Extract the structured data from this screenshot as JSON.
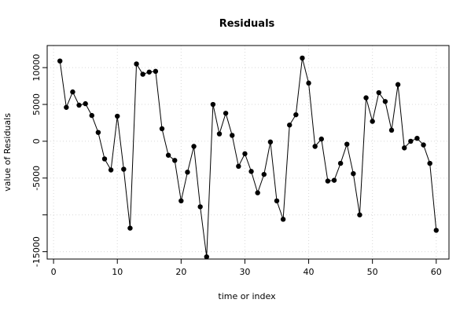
{
  "chart_data": {
    "type": "line",
    "title": "Residuals",
    "xlabel": "time or index",
    "ylabel": "value of Residuals",
    "xlim": [
      -1,
      62
    ],
    "ylim": [
      -16000,
      13000
    ],
    "x_ticks": [
      0,
      10,
      20,
      30,
      40,
      50,
      60
    ],
    "x_tick_labels": [
      "0",
      "10",
      "20",
      "30",
      "40",
      "50",
      "60"
    ],
    "y_ticks": [
      10000,
      5000,
      0,
      -5000,
      -15000
    ],
    "y_tick_labels": [
      "10000",
      "5000",
      "0",
      "-5000",
      "-15000"
    ],
    "y_minor_ticks": [
      -10000
    ],
    "grid": true,
    "line_color": "#000000",
    "marker": "filled-circle",
    "series": [
      {
        "x": [
          1,
          2,
          3,
          4,
          5,
          6,
          7,
          8,
          9,
          10,
          11,
          12,
          13,
          14,
          15,
          16,
          17,
          18,
          19,
          20,
          21,
          22,
          23,
          24,
          25,
          26,
          27,
          28,
          29,
          30,
          31,
          32,
          33,
          34,
          35,
          36,
          37,
          38,
          39,
          40,
          41,
          42,
          43,
          44,
          45,
          46,
          47,
          48,
          49,
          50,
          51,
          52,
          53,
          54,
          55,
          56,
          57,
          58,
          59,
          60
        ],
        "values": [
          10900,
          4600,
          6700,
          4900,
          5100,
          3500,
          1200,
          -2400,
          -3900,
          3400,
          -3800,
          -11800,
          10500,
          9100,
          9400,
          9500,
          1700,
          -1900,
          -2600,
          -8100,
          -4200,
          -700,
          -8900,
          -15700,
          5000,
          1000,
          3800,
          800,
          -3400,
          -1700,
          -4100,
          -7000,
          -4500,
          -100,
          -8100,
          -10600,
          2200,
          3600,
          11300,
          7900,
          -700,
          300,
          -5400,
          -5300,
          -3000,
          -400,
          -4400,
          -10000,
          5900,
          2700,
          6600,
          5400,
          1500,
          7700,
          -900,
          0,
          400,
          -500,
          -3000,
          -12100
        ]
      }
    ]
  }
}
